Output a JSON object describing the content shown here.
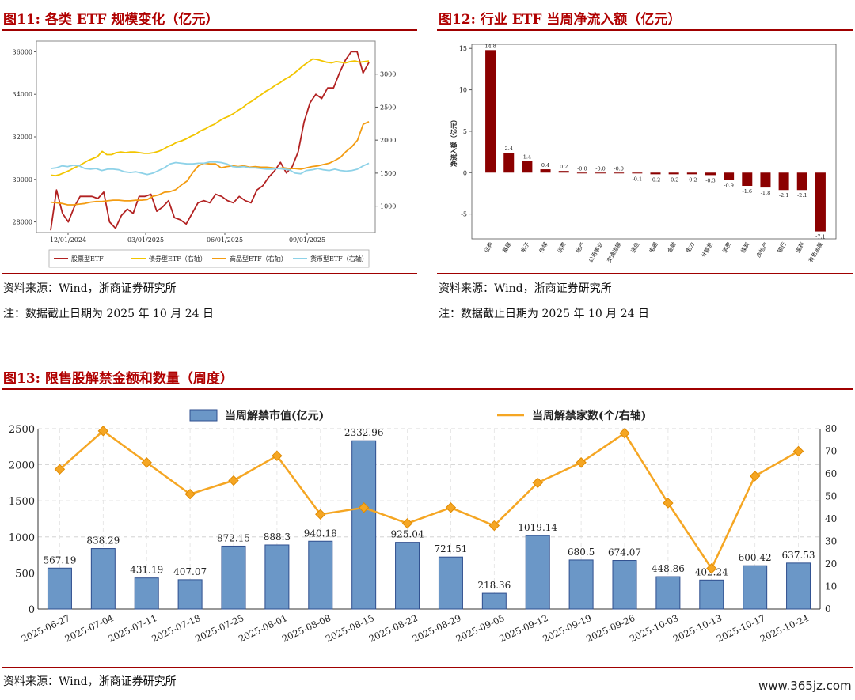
{
  "fig11": {
    "title": "图11:  各类 ETF 规模变化（亿元）",
    "source": "资料来源：Wind，浙商证券研究所",
    "note": "注：数据截止日期为 2025 年 10 月 24 日"
  },
  "fig12": {
    "title": "图12:  行业 ETF 当周净流入额（亿元）",
    "source": "资料来源：Wind，浙商证券研究所",
    "note": "注：数据截止日期为 2025 年 10 月 24 日"
  },
  "fig13": {
    "title": "图13:  限售股解禁金额和数量（周度）",
    "source": "资料来源：Wind，浙商证券研究所"
  },
  "watermark": "www.365jz.com",
  "chart_data": [
    {
      "id": "fig11",
      "type": "line",
      "title": "各类 ETF 规模变化（亿元）",
      "x_ticks": [
        "12/01/2024",
        "03/01/2025",
        "06/01/2025",
        "09/01/2025"
      ],
      "left_axis": {
        "ylim": [
          27500,
          36500
        ],
        "ticks": [
          28000,
          30000,
          32000,
          34000,
          36000
        ]
      },
      "right_axis": {
        "ylim": [
          600,
          3500
        ],
        "ticks": [
          1000,
          1500,
          2000,
          2500,
          3000
        ]
      },
      "series": [
        {
          "name": "股票型ETF",
          "axis": "left",
          "color": "#b22222",
          "values": [
            27600,
            29500,
            28400,
            28000,
            28700,
            29200,
            29200,
            29200,
            29100,
            29400,
            28000,
            27700,
            28300,
            28600,
            28400,
            29200,
            29200,
            29300,
            28500,
            28700,
            29000,
            28200,
            28100,
            27900,
            28400,
            28900,
            29000,
            28900,
            29300,
            29200,
            29000,
            28900,
            29200,
            29000,
            28900,
            29500,
            29700,
            30100,
            30400,
            30800,
            30300,
            30600,
            31300,
            32700,
            33600,
            34000,
            33800,
            34300,
            34300,
            35000,
            35600,
            36000,
            36000,
            35000,
            35500
          ]
        },
        {
          "name": "债券型ETF（右轴）",
          "axis": "right",
          "color": "#f2c500",
          "values": [
            1470,
            1460,
            1480,
            1510,
            1540,
            1580,
            1610,
            1650,
            1690,
            1720,
            1750,
            1830,
            1780,
            1780,
            1810,
            1820,
            1810,
            1820,
            1820,
            1810,
            1800,
            1800,
            1810,
            1830,
            1860,
            1900,
            1930,
            1970,
            1990,
            2020,
            2060,
            2090,
            2140,
            2170,
            2210,
            2240,
            2290,
            2330,
            2360,
            2400,
            2450,
            2490,
            2550,
            2590,
            2640,
            2690,
            2740,
            2780,
            2830,
            2870,
            2920,
            2960,
            3010,
            3070,
            3130,
            3180,
            3230,
            3220,
            3200,
            3180,
            3170,
            3190,
            3180,
            3170,
            3190,
            3200,
            3180,
            3190,
            3200
          ]
        },
        {
          "name": "商品型ETF（右轴）",
          "axis": "right",
          "color": "#f39c12",
          "values": [
            1060,
            1050,
            1040,
            1020,
            1020,
            1030,
            1040,
            1060,
            1070,
            1070,
            1080,
            1090,
            1090,
            1080,
            1080,
            1090,
            1090,
            1100,
            1150,
            1170,
            1210,
            1220,
            1250,
            1320,
            1380,
            1510,
            1610,
            1650,
            1640,
            1640,
            1580,
            1600,
            1610,
            1600,
            1610,
            1590,
            1600,
            1590,
            1590,
            1580,
            1570,
            1580,
            1570,
            1570,
            1560,
            1580,
            1600,
            1610,
            1630,
            1650,
            1690,
            1740,
            1830,
            1900,
            2000,
            2240,
            2280
          ]
        },
        {
          "name": "货币型ETF（右轴）",
          "axis": "right",
          "color": "#8ed2e8",
          "values": [
            1570,
            1580,
            1610,
            1600,
            1620,
            1610,
            1570,
            1560,
            1570,
            1540,
            1560,
            1560,
            1550,
            1520,
            1510,
            1520,
            1500,
            1480,
            1500,
            1540,
            1580,
            1640,
            1660,
            1650,
            1640,
            1640,
            1650,
            1650,
            1670,
            1670,
            1660,
            1640,
            1600,
            1590,
            1600,
            1580,
            1580,
            1570,
            1560,
            1560,
            1570,
            1560,
            1550,
            1500,
            1490,
            1540,
            1550,
            1570,
            1550,
            1540,
            1560,
            1540,
            1530,
            1540,
            1560,
            1610,
            1650
          ]
        }
      ],
      "legend": [
        "股票型ETF",
        "债券型ETF（右轴）",
        "商品型ETF（右轴）",
        "货币型ETF（右轴）"
      ]
    },
    {
      "id": "fig12",
      "type": "bar",
      "title": "行业 ETF 当周净流入额（亿元）",
      "ylabel": "净流入额（亿元）",
      "ylim": [
        -8,
        15.5
      ],
      "y_ticks": [
        -5,
        0,
        5,
        10,
        15
      ],
      "categories": [
        "证券",
        "基建",
        "电子",
        "传媒",
        "消费",
        "地产",
        "公用事业",
        "交通运输",
        "通信",
        "电器",
        "金融",
        "电力",
        "计算机",
        "消费",
        "煤炭",
        "房地产",
        "银行",
        "医药",
        "有色金属"
      ],
      "values": [
        14.8,
        2.4,
        1.4,
        0.4,
        0.2,
        -0.0,
        -0.0,
        -0.0,
        -0.1,
        -0.2,
        -0.2,
        -0.2,
        -0.3,
        -0.9,
        -1.6,
        -1.8,
        -2.1,
        -2.1,
        -7.1
      ],
      "labels": [
        "14.8",
        "2.4",
        "1.4",
        "0.4",
        "0.2",
        "-0.0",
        "-0.0",
        "-0.0",
        "-0.1",
        "-0.2",
        "-0.2",
        "-0.2",
        "-0.3",
        "-0.9",
        "-1.6",
        "-1.8",
        "-2.1",
        "-2.1",
        "-7.1"
      ],
      "color": "#8b0000"
    },
    {
      "id": "fig13",
      "type": "bar+line",
      "title": "限售股解禁金额和数量（周度）",
      "categories": [
        "2025-06-27",
        "2025-07-04",
        "2025-07-11",
        "2025-07-18",
        "2025-07-25",
        "2025-08-01",
        "2025-08-08",
        "2025-08-15",
        "2025-08-22",
        "2025-08-29",
        "2025-09-05",
        "2025-09-12",
        "2025-09-19",
        "2025-09-26",
        "2025-10-03",
        "2025-10-13",
        "2025-10-17",
        "2025-10-24"
      ],
      "series": [
        {
          "name": "当周解禁市值(亿元)",
          "type": "bar",
          "axis": "left",
          "color": "#6b97c7",
          "values": [
            567.19,
            838.29,
            431.19,
            407.07,
            872.15,
            888.3,
            940.18,
            2332.96,
            925.04,
            721.51,
            218.36,
            1019.14,
            680.5,
            674.07,
            448.86,
            402.24,
            600.42,
            637.53
          ],
          "labels": [
            "567.19",
            "838.29",
            "431.19",
            "407.07",
            "872.15",
            "888.3",
            "940.18",
            "2332.96",
            "925.04",
            "721.51",
            "218.36",
            "1019.14",
            "680.5",
            "674.07",
            "448.86",
            "402.24",
            "600.42",
            "637.53"
          ]
        },
        {
          "name": "当周解禁家数(个/右轴)",
          "type": "line",
          "axis": "right",
          "color": "#f5a623",
          "values": [
            62,
            79,
            65,
            51,
            57,
            68,
            42,
            45,
            38,
            45,
            37,
            56,
            65,
            78,
            47,
            18,
            59,
            70
          ]
        }
      ],
      "left_axis": {
        "ylim": [
          0,
          2500
        ],
        "ticks": [
          0,
          500,
          1000,
          1500,
          2000,
          2500
        ]
      },
      "right_axis": {
        "ylim": [
          0,
          80
        ],
        "ticks": [
          0,
          10,
          20,
          30,
          40,
          50,
          60,
          70,
          80
        ]
      }
    }
  ]
}
